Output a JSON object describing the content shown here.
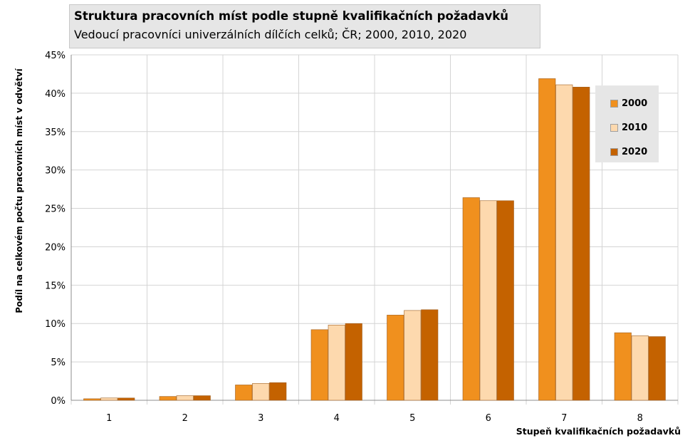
{
  "title": "Struktura pracovních míst podle stupně kvalifikačních požadavků",
  "subtitle": "Vedoucí pracovníci univerzálních dílčích celků; ČR; 2000, 2010, 2020",
  "chart_data": {
    "type": "bar",
    "categories": [
      "1",
      "2",
      "3",
      "4",
      "5",
      "6",
      "7",
      "8"
    ],
    "series": [
      {
        "name": "2000",
        "color": "#f0901e",
        "values": [
          0.2,
          0.5,
          2.0,
          9.2,
          11.1,
          26.4,
          41.9,
          8.8
        ]
      },
      {
        "name": "2010",
        "color": "#fdd9ae",
        "values": [
          0.3,
          0.6,
          2.2,
          9.8,
          11.7,
          26.0,
          41.1,
          8.4
        ]
      },
      {
        "name": "2020",
        "color": "#c46200",
        "values": [
          0.3,
          0.6,
          2.3,
          10.0,
          11.8,
          26.0,
          40.8,
          8.3
        ]
      }
    ],
    "xlabel": "Stupeň kvalifikačních požadavků",
    "ylabel": "Podíl na celkovém počtu pracovních míst v odvětví",
    "ylim": [
      0,
      45
    ],
    "yticks": [
      "0%",
      "5%",
      "10%",
      "15%",
      "20%",
      "25%",
      "30%",
      "35%",
      "40%",
      "45%"
    ],
    "grid": true,
    "legend_position": "top-right"
  }
}
